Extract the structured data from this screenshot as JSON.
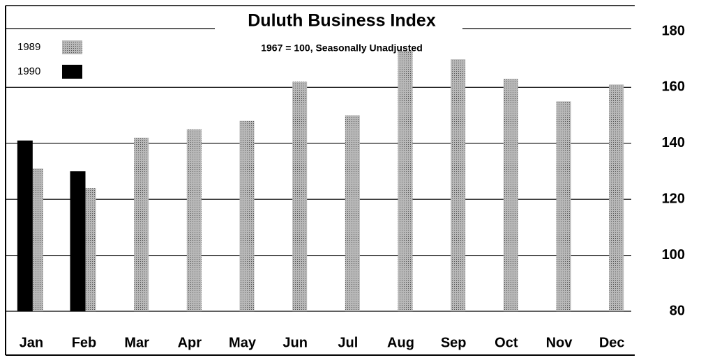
{
  "chart_data": {
    "type": "bar",
    "title": "Duluth Business Index",
    "subtitle": "1967 = 100, Seasonally Unadjusted",
    "categories": [
      "Jan",
      "Feb",
      "Mar",
      "Apr",
      "May",
      "Jun",
      "Jul",
      "Aug",
      "Sep",
      "Oct",
      "Nov",
      "Dec"
    ],
    "series": [
      {
        "name": "1989",
        "color": "#b8b8b8",
        "values": [
          131,
          124,
          142,
          145,
          148,
          162,
          150,
          173,
          170,
          163,
          155,
          161
        ]
      },
      {
        "name": "1990",
        "color": "#000000",
        "values": [
          141,
          130,
          null,
          null,
          null,
          null,
          null,
          null,
          null,
          null,
          null,
          null
        ]
      }
    ],
    "ylim": [
      80,
      180
    ],
    "yticks": [
      80,
      100,
      120,
      140,
      160,
      180
    ],
    "grid": true
  }
}
